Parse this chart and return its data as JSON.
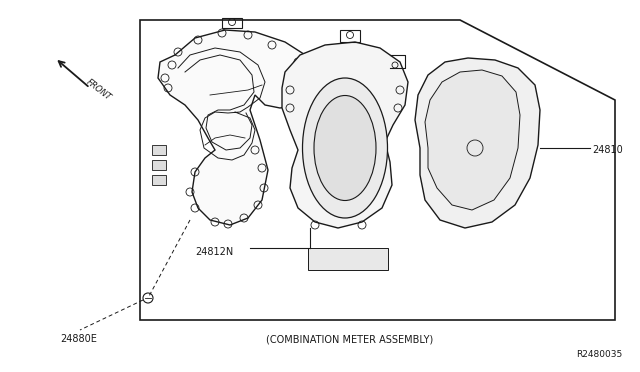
{
  "bg_color": "#ffffff",
  "line_color": "#1a1a1a",
  "gray_fill": "#f2f2f2",
  "mid_gray": "#e0e0e0",
  "labels": {
    "front_label": "FRONT",
    "part1": "24880E",
    "part2": "24812N",
    "part3": "24810",
    "ref_code": "R2480035",
    "caption": "(COMBINATION METER ASSEMBLY)"
  },
  "figsize": [
    6.4,
    3.72
  ],
  "dpi": 100
}
